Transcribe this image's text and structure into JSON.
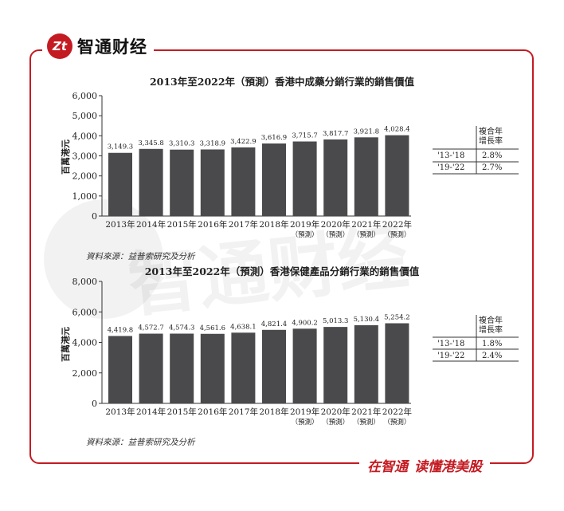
{
  "brand": {
    "name": "智通财经",
    "logo_text": "Zt",
    "slogan_left": "在智通",
    "slogan_right": "读懂港美股"
  },
  "watermark": "智通财经",
  "colors": {
    "accent": "#c41b22",
    "bar": "#4a4a4c"
  },
  "chart_data": [
    {
      "type": "bar",
      "title": "2013年至2022年（預測）香港中成藥分銷行業的銷售價值",
      "ylabel": "百萬港元",
      "ylim": [
        0,
        6000
      ],
      "yticks": [
        "0",
        "1,000",
        "2,000",
        "3,000",
        "4,000",
        "5,000",
        "6,000"
      ],
      "categories": [
        "2013年",
        "2014年",
        "2015年",
        "2016年",
        "2017年",
        "2018年",
        "2019年",
        "2020年",
        "2021年",
        "2022年"
      ],
      "category_notes": [
        "",
        "",
        "",
        "",
        "",
        "",
        "（預測）",
        "（預測）",
        "（預測）",
        "（預測）"
      ],
      "values": [
        3149.3,
        3345.8,
        3310.3,
        3318.9,
        3422.9,
        3616.9,
        3715.7,
        3817.7,
        3921.8,
        4028.4
      ],
      "value_labels": [
        "3,149.3",
        "3,345.8",
        "3,310.3",
        "3,318.9",
        "3,422.9",
        "3,616.9",
        "3,715.7",
        "3,817.7",
        "3,921.8",
        "4,028.4"
      ],
      "cagr": {
        "header": "複合年增長率",
        "rows": [
          {
            "period": "'13-'18",
            "rate": "2.8%"
          },
          {
            "period": "'19-'22",
            "rate": "2.7%"
          }
        ]
      },
      "source": "資料來源：益普索研究及分析"
    },
    {
      "type": "bar",
      "title": "2013年至2022年（預測）香港保健產品分銷行業的銷售價值",
      "ylabel": "百萬港元",
      "ylim": [
        0,
        8000
      ],
      "yticks": [
        "0",
        "2,000",
        "4,000",
        "6,000",
        "8,000"
      ],
      "categories": [
        "2013年",
        "2014年",
        "2015年",
        "2016年",
        "2017年",
        "2018年",
        "2019年",
        "2020年",
        "2021年",
        "2022年"
      ],
      "category_notes": [
        "",
        "",
        "",
        "",
        "",
        "",
        "（預測）",
        "（預測）",
        "（預測）",
        "（預測）"
      ],
      "values": [
        4419.8,
        4572.7,
        4574.3,
        4561.6,
        4638.1,
        4821.4,
        4900.2,
        5013.3,
        5130.4,
        5254.2
      ],
      "value_labels": [
        "4,419.8",
        "4,572.7",
        "4,574.3",
        "4,561.6",
        "4,638.1",
        "4,821.4",
        "4,900.2",
        "5,013.3",
        "5,130.4",
        "5,254.2"
      ],
      "cagr": {
        "header": "複合年增長率",
        "rows": [
          {
            "period": "'13-'18",
            "rate": "1.8%"
          },
          {
            "period": "'19-'22",
            "rate": "2.4%"
          }
        ]
      },
      "source": "資料來源：益普索研究及分析"
    }
  ]
}
